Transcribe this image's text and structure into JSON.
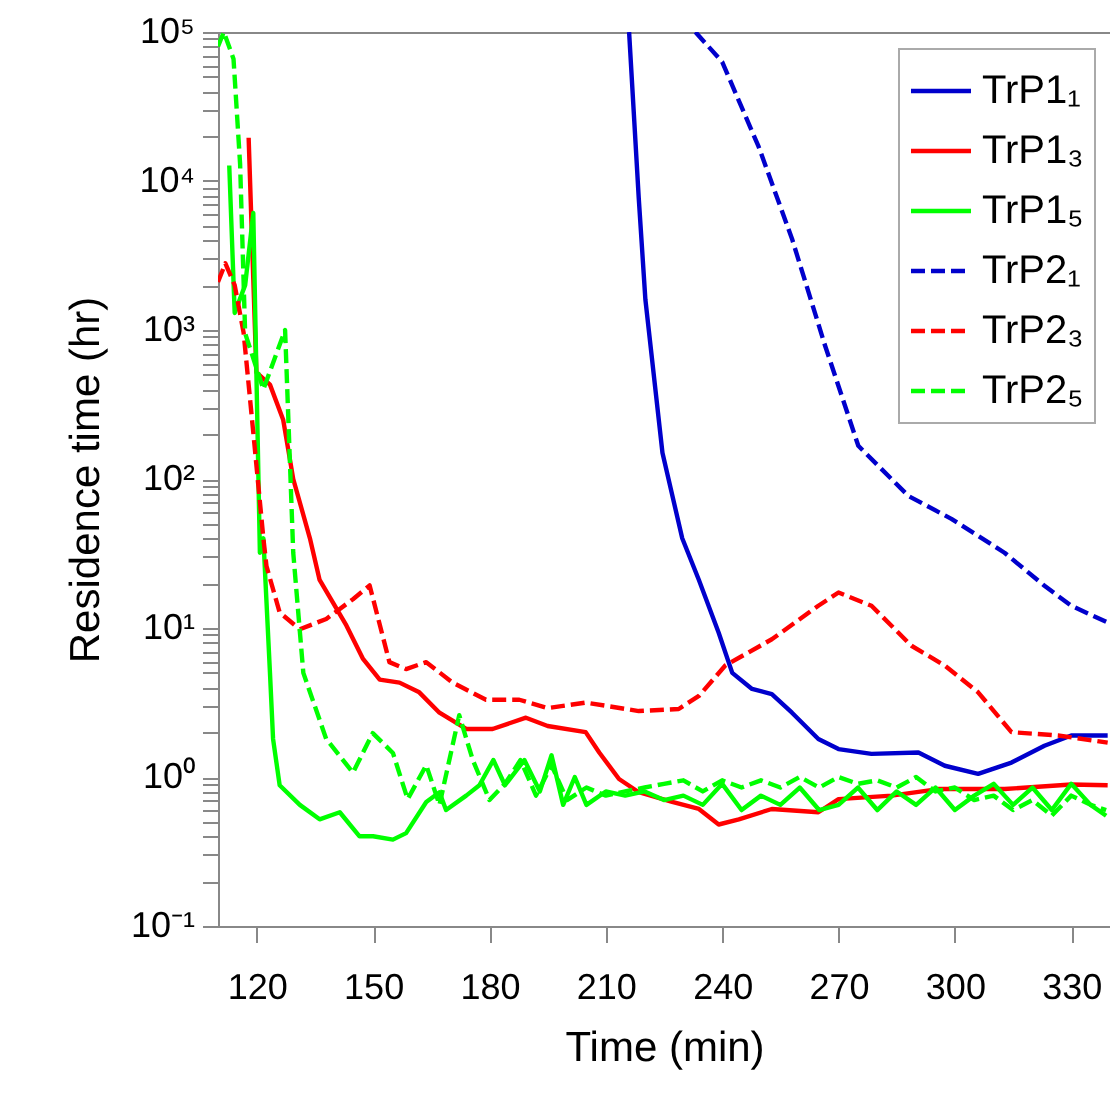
{
  "chart_data": {
    "type": "line",
    "xlabel": "Time (min)",
    "ylabel": "Residence time (hr)",
    "log": true,
    "legend": "top right",
    "xlim": [
      110,
      340
    ],
    "xticks": [
      120,
      150,
      180,
      210,
      240,
      270,
      300,
      330
    ],
    "ylim": [
      0.1,
      100000
    ],
    "yticks": [
      {
        "value": 0.1,
        "label": "10⁻¹"
      },
      {
        "value": 0.2,
        "label": null
      },
      {
        "value": 0.3,
        "label": null
      },
      {
        "value": 0.4,
        "label": null
      },
      {
        "value": 0.5,
        "label": null
      },
      {
        "value": 0.6,
        "label": null
      },
      {
        "value": 0.7,
        "label": null
      },
      {
        "value": 0.8,
        "label": null
      },
      {
        "value": 0.9,
        "label": null
      },
      {
        "value": 1,
        "label": "10⁰"
      },
      {
        "value": 2,
        "label": null
      },
      {
        "value": 3,
        "label": null
      },
      {
        "value": 4,
        "label": null
      },
      {
        "value": 5,
        "label": null
      },
      {
        "value": 6,
        "label": null
      },
      {
        "value": 7,
        "label": null
      },
      {
        "value": 8,
        "label": null
      },
      {
        "value": 9,
        "label": null
      },
      {
        "value": 10,
        "label": "10¹"
      },
      {
        "value": 20,
        "label": null
      },
      {
        "value": 30,
        "label": null
      },
      {
        "value": 40,
        "label": null
      },
      {
        "value": 50,
        "label": null
      },
      {
        "value": 60,
        "label": null
      },
      {
        "value": 70,
        "label": null
      },
      {
        "value": 80,
        "label": null
      },
      {
        "value": 90,
        "label": null
      },
      {
        "value": 100,
        "label": "10²"
      },
      {
        "value": 200,
        "label": null
      },
      {
        "value": 300,
        "label": null
      },
      {
        "value": 400,
        "label": null
      },
      {
        "value": 500,
        "label": null
      },
      {
        "value": 600,
        "label": null
      },
      {
        "value": 700,
        "label": null
      },
      {
        "value": 800,
        "label": null
      },
      {
        "value": 900,
        "label": null
      },
      {
        "value": 1000,
        "label": "10³"
      },
      {
        "value": 2000,
        "label": null
      },
      {
        "value": 3000,
        "label": null
      },
      {
        "value": 4000,
        "label": null
      },
      {
        "value": 5000,
        "label": null
      },
      {
        "value": 6000,
        "label": null
      },
      {
        "value": 7000,
        "label": null
      },
      {
        "value": 8000,
        "label": null
      },
      {
        "value": 9000,
        "label": null
      },
      {
        "value": 10000,
        "label": "10⁴"
      },
      {
        "value": 20000,
        "label": null
      },
      {
        "value": 30000,
        "label": null
      },
      {
        "value": 40000,
        "label": null
      },
      {
        "value": 50000,
        "label": null
      },
      {
        "value": 60000,
        "label": null
      },
      {
        "value": 70000,
        "label": null
      },
      {
        "value": 80000,
        "label": null
      },
      {
        "value": 90000,
        "label": null
      },
      {
        "value": 100000,
        "label": "10⁵"
      }
    ],
    "series": [
      {
        "name": "TrP1₁",
        "color": "#0000cc",
        "line_style": "solid",
        "x": [
          216,
          218.5,
          220.2,
          224.6,
          229.7,
          234,
          239.1,
          242.6,
          247.7,
          252.8,
          258,
          264.8,
          270,
          278.5,
          290.6,
          297.4,
          306,
          314.6,
          323.1,
          330,
          339.4
        ],
        "values": [
          100000,
          7600,
          1600,
          150,
          40,
          21,
          9.3,
          5.0,
          3.9,
          3.6,
          2.7,
          1.8,
          1.54,
          1.43,
          1.46,
          1.19,
          1.05,
          1.25,
          1.62,
          1.9,
          1.9
        ]
      },
      {
        "name": "TrP1₃",
        "color": "#ff0000",
        "line_style": "solid",
        "x": [
          117.9,
          119.1,
          119.9,
          123.4,
          126.8,
          129.4,
          133.7,
          136.2,
          143.1,
          147.4,
          151.7,
          156.8,
          161.9,
          167.1,
          174,
          180.8,
          189.4,
          195,
          204.8,
          208.3,
          213.4,
          218.5,
          227.1,
          234,
          239.1,
          244.3,
          252.8,
          264.8,
          270,
          283.7,
          295.7,
          312.8,
          330,
          339.4
        ],
        "values": [
          19500,
          2200,
          520,
          430,
          250,
          100,
          40,
          21,
          10.4,
          6.2,
          4.5,
          4.3,
          3.7,
          2.7,
          2.1,
          2.1,
          2.5,
          2.2,
          2.0,
          1.46,
          0.97,
          0.79,
          0.68,
          0.61,
          0.48,
          0.52,
          0.61,
          0.58,
          0.71,
          0.75,
          0.83,
          0.83,
          0.89,
          0.88
        ]
      },
      {
        "name": "TrP1₅",
        "color": "#00ff00",
        "line_style": "solid",
        "x": [
          112.9,
          114.3,
          117,
          119.1,
          120.8,
          121.7,
          123.4,
          124.2,
          125.9,
          131.1,
          136.2,
          141.4,
          146.5,
          150,
          155.1,
          158.5,
          163.7,
          167.1,
          168.8,
          174,
          177.4,
          181,
          184,
          189,
          193,
          196,
          199,
          202,
          205,
          210,
          215,
          220,
          225,
          230,
          235,
          240,
          245,
          250,
          255,
          260,
          265,
          270,
          275,
          280,
          285,
          290,
          295,
          300,
          305,
          310,
          315,
          320,
          325,
          330,
          335,
          339
        ],
        "values": [
          12700,
          1300,
          2000,
          6100,
          32,
          40,
          5,
          1.8,
          0.88,
          0.65,
          0.52,
          0.58,
          0.4,
          0.4,
          0.38,
          0.42,
          0.68,
          0.79,
          0.6,
          0.75,
          0.88,
          1.3,
          0.88,
          1.3,
          0.8,
          1.4,
          0.65,
          1.0,
          0.65,
          0.8,
          0.75,
          0.8,
          0.7,
          0.75,
          0.65,
          0.9,
          0.6,
          0.75,
          0.65,
          0.85,
          0.6,
          0.65,
          0.85,
          0.6,
          0.8,
          0.65,
          0.85,
          0.6,
          0.75,
          0.9,
          0.65,
          0.85,
          0.6,
          0.9,
          0.65,
          0.55
        ]
      },
      {
        "name": "TrP2₁",
        "color": "#0000cc",
        "line_style": "dashed",
        "x": [
          233.1,
          240,
          249.4,
          258,
          266.5,
          275.1,
          288,
          299.1,
          312.8,
          323.1,
          330,
          339.4
        ],
        "values": [
          100000,
          63000,
          17000,
          4100,
          790,
          167,
          77,
          54,
          32,
          19.2,
          14.1,
          10.9
        ]
      },
      {
        "name": "TrP2₃",
        "color": "#ff0000",
        "line_style": "dashed",
        "x": [
          110,
          111.9,
          114.3,
          116.6,
          119.1,
          121.7,
          122.5,
          125.9,
          131.1,
          137.9,
          144.8,
          149.1,
          154.2,
          158.5,
          163.7,
          170.5,
          179.1,
          187.7,
          195,
          204.8,
          218.5,
          228.8,
          234,
          240.8,
          252.8,
          264.8,
          270,
          278.5,
          288.8,
          297.4,
          306,
          314.6,
          326.6,
          339.4
        ],
        "values": [
          2100,
          2800,
          2000,
          960,
          205,
          40,
          26,
          12.7,
          9.8,
          11.5,
          15.6,
          19.3,
          5.9,
          5.3,
          5.9,
          4.3,
          3.3,
          3.3,
          2.9,
          3.16,
          2.77,
          2.86,
          3.5,
          5.6,
          8.4,
          14.1,
          17.3,
          14.1,
          7.6,
          5.6,
          3.7,
          2.0,
          1.9,
          1.7
        ]
      },
      {
        "name": "TrP2₅",
        "color": "#00ff00",
        "line_style": "dashed",
        "x": [
          110,
          111.5,
          114,
          115.7,
          117,
          121.7,
          127.3,
          129.4,
          132,
          137.9,
          144.8,
          149.9,
          155.1,
          158.9,
          163.7,
          167.1,
          172.2,
          175.7,
          180,
          184,
          188,
          192,
          196,
          200,
          205,
          210,
          215,
          220,
          225,
          230,
          235,
          240,
          245,
          250,
          255,
          260,
          265,
          270,
          275,
          280,
          285,
          290,
          295,
          300,
          305,
          310,
          315,
          320,
          325,
          330,
          335,
          339
        ],
        "values": [
          80000,
          100000,
          66000,
          13000,
          950,
          400,
          1000,
          32,
          5,
          1.8,
          1.07,
          1.97,
          1.45,
          0.71,
          1.2,
          0.65,
          2.6,
          1.3,
          0.7,
          0.9,
          1.3,
          0.75,
          1.2,
          0.7,
          0.85,
          0.75,
          0.8,
          0.85,
          0.9,
          0.95,
          0.8,
          0.95,
          0.85,
          0.95,
          0.85,
          1.0,
          0.85,
          1.0,
          0.9,
          0.95,
          0.85,
          1.0,
          0.8,
          0.85,
          0.7,
          0.75,
          0.6,
          0.7,
          0.55,
          0.75,
          0.65,
          0.6
        ]
      }
    ]
  }
}
